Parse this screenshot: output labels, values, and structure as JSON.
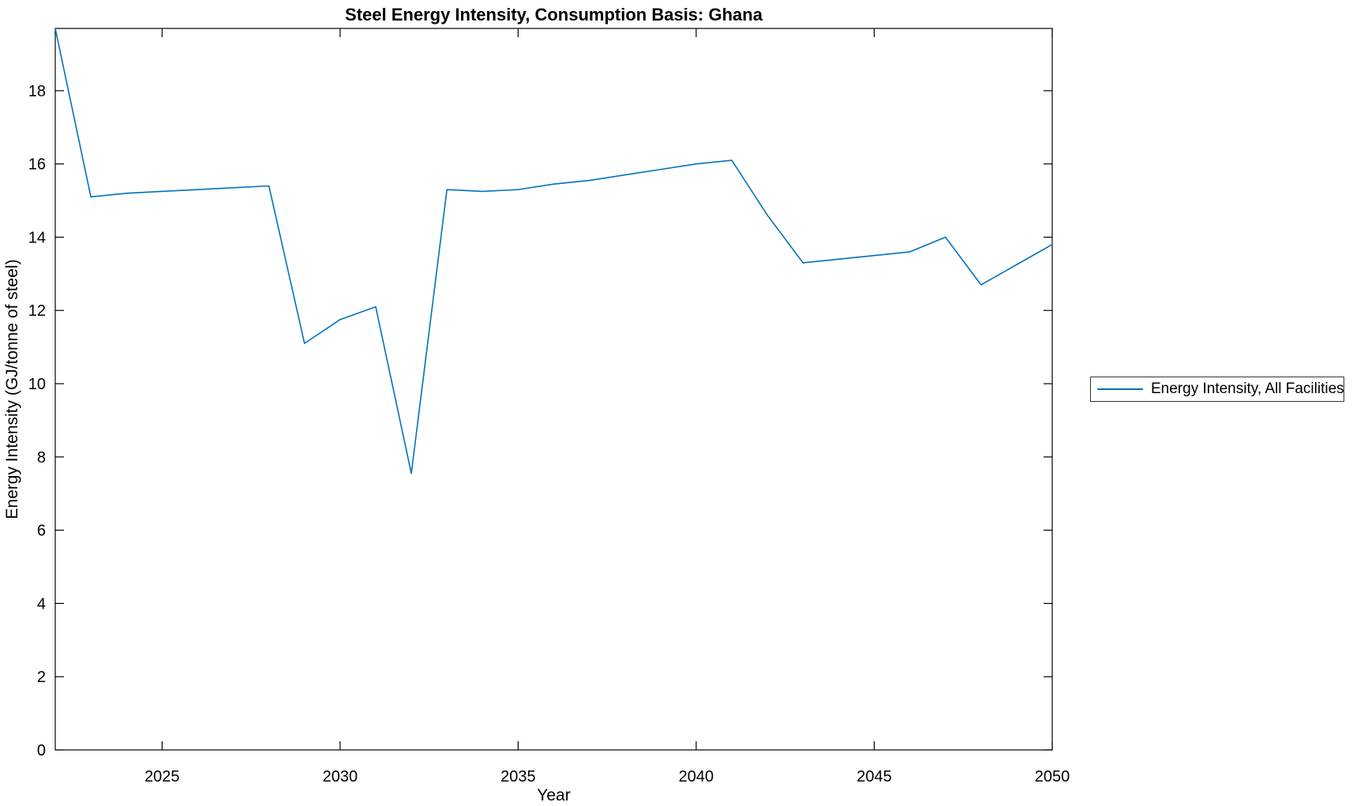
{
  "figure": {
    "title": "Steel Energy Intensity, Consumption Basis: Ghana",
    "xlabel": "Year",
    "ylabel": "Energy Intensity (GJ/tonne of steel)",
    "background_color": "#ffffff",
    "axis_color": "#000000",
    "legend": {
      "label": "Energy Intensity, All Facilities",
      "line_color": "#0072BD",
      "position": "outside-right"
    }
  },
  "chart_data": {
    "type": "line",
    "title": "Steel Energy Intensity, Consumption Basis: Ghana",
    "xlabel": "Year",
    "ylabel": "Energy Intensity (GJ/tonne of steel)",
    "grid": false,
    "xlim": [
      2022,
      2050
    ],
    "ylim": [
      0,
      19.7
    ],
    "xticks": [
      2025,
      2030,
      2035,
      2040,
      2045,
      2050
    ],
    "yticks": [
      0,
      2,
      4,
      6,
      8,
      10,
      12,
      14,
      16,
      18
    ],
    "legend_position": "outside right",
    "series": [
      {
        "name": "Energy Intensity, All Facilities",
        "color": "#0072BD",
        "x": [
          2022,
          2023,
          2024,
          2025,
          2026,
          2027,
          2028,
          2029,
          2030,
          2031,
          2032,
          2033,
          2034,
          2035,
          2036,
          2037,
          2038,
          2039,
          2040,
          2041,
          2042,
          2043,
          2044,
          2045,
          2046,
          2047,
          2048,
          2049,
          2050
        ],
        "y": [
          19.7,
          15.1,
          15.2,
          15.25,
          15.3,
          15.35,
          15.4,
          11.1,
          11.75,
          12.1,
          7.55,
          15.3,
          15.25,
          15.3,
          15.45,
          15.55,
          15.7,
          15.85,
          16.0,
          16.1,
          14.6,
          13.3,
          13.4,
          13.5,
          13.6,
          14.0,
          12.7,
          13.25,
          13.8
        ]
      }
    ]
  }
}
